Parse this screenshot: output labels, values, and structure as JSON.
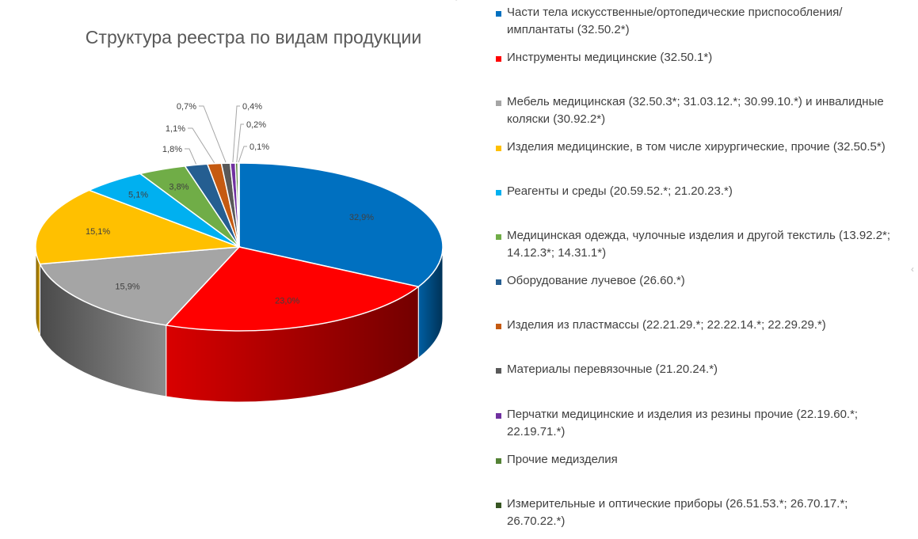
{
  "chart_data": {
    "type": "pie",
    "title": "Структура реестра по видам продукции",
    "slices": [
      {
        "label": "Части тела искусственные/ортопедические приспособления/имплантаты (32.50.2*)",
        "value": 32.9,
        "value_label": "32,9%",
        "color": "#0070c0"
      },
      {
        "label": "Инструменты медицинские (32.50.1*)",
        "value": 23.0,
        "value_label": "23,0%",
        "color": "#ff0000"
      },
      {
        "label": "Мебель медицинская (32.50.3*; 31.03.12.*; 30.99.10.*) и инвалидные коляски (30.92.2*)",
        "value": 15.9,
        "value_label": "15,9%",
        "color": "#a5a5a5"
      },
      {
        "label": "Изделия медицинские, в том числе хирургические, прочие (32.50.5*)",
        "value": 15.1,
        "value_label": "15,1%",
        "color": "#ffc000"
      },
      {
        "label": "Реагенты и среды (20.59.52.*; 21.20.23.*)",
        "value": 5.1,
        "value_label": "5,1%",
        "color": "#00b0f0"
      },
      {
        "label": "Медицинская одежда, чулочные изделия и другой текстиль (13.92.2*; 14.12.3*; 14.31.1*)",
        "value": 3.8,
        "value_label": "3,8%",
        "color": "#70ad47"
      },
      {
        "label": "Оборудование лучевое (26.60.*)",
        "value": 1.8,
        "value_label": "1,8%",
        "color": "#255e91"
      },
      {
        "label": "Изделия из пластмассы (22.21.29.*; 22.22.14.*; 22.29.29.*)",
        "value": 1.1,
        "value_label": "1,1%",
        "color": "#c55a11"
      },
      {
        "label": "Материалы перевязочные (21.20.24.*)",
        "value": 0.7,
        "value_label": "0,7%",
        "color": "#595959"
      },
      {
        "label": "Перчатки медицинские и изделия из резины прочие (22.19.60.*; 22.19.71.*)",
        "value": 0.4,
        "value_label": "0,4%",
        "color": "#7030a0"
      },
      {
        "label": "Прочие медизделия",
        "value": 0.2,
        "value_label": "0,2%",
        "color": "#548235"
      },
      {
        "label": "Измерительные и оптические приборы (26.51.53.*; 26.70.17.*; 26.70.22.*)",
        "value": 0.1,
        "value_label": "0,1%",
        "color": "#375623"
      }
    ],
    "legend_position": "right",
    "style": "3d"
  }
}
